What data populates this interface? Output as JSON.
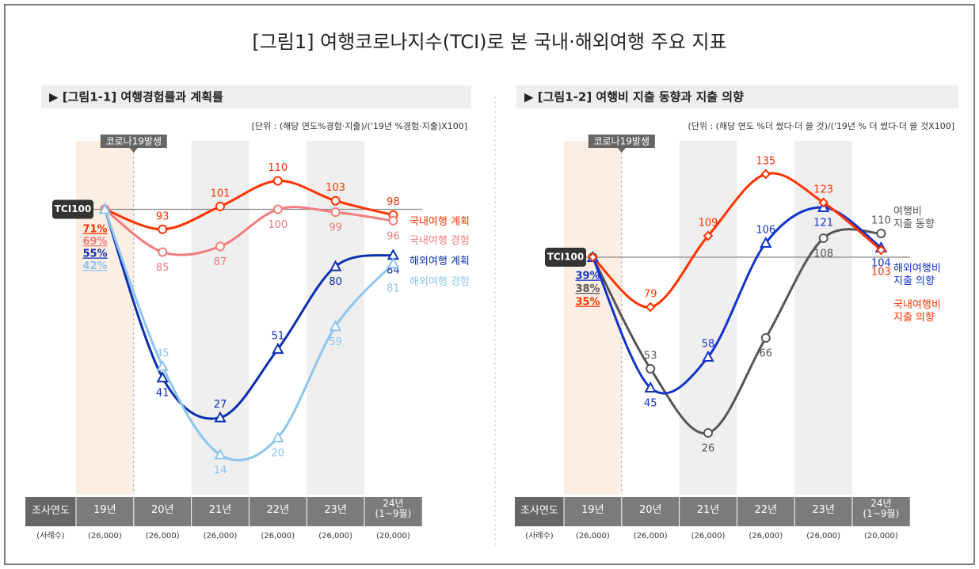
{
  "title": "[그림1] 여행코로나지수(TCI)로 본 국내·해외여행 주요 지표",
  "chart_data": [
    {
      "type": "line",
      "title": "▶ [그림1-1] 여행경험률과 계획률",
      "unit_note": "[단위 : (해당 연도%경험·지출)/('19년 %경험·지출)X100]",
      "categories": [
        "19년",
        "20년",
        "21년",
        "22년",
        "23년",
        "24년\n(1~9월)"
      ],
      "sample_sizes": [
        "(26,000)",
        "(26,000)",
        "(26,000)",
        "(26,000)",
        "(26,000)",
        "(20,000)"
      ],
      "row_labels": [
        "조사연도",
        "(사례수)"
      ],
      "event_label": "코로나19발생",
      "highlight": 0,
      "shaded": [
        2,
        4
      ],
      "reference": {
        "value": 100,
        "label": "TCI100"
      },
      "ylim": [
        0,
        124
      ],
      "series": [
        {
          "name": "국내여행 계획",
          "color": "#ff3300",
          "marker": "circle",
          "values": [
            100,
            93,
            101,
            110,
            103,
            98
          ],
          "base_label": "71%"
        },
        {
          "name": "국내여행 경험",
          "color": "#f47c7c",
          "marker": "circle",
          "values": [
            100,
            85,
            87,
            100,
            99,
            96
          ],
          "base_label": "69%"
        },
        {
          "name": "해외여행 계획",
          "color": "#0a2fae",
          "marker": "triangle",
          "values": [
            100,
            41,
            27,
            51,
            80,
            84
          ],
          "base_label": "55%"
        },
        {
          "name": "해외여행 경험",
          "color": "#8ec5ef",
          "marker": "triangle",
          "values": [
            100,
            45,
            14,
            20,
            59,
            81
          ],
          "base_label": "42%"
        }
      ]
    },
    {
      "type": "line",
      "title": "▶ [그림1-2] 여행비 지출 동향과 지출 의향",
      "unit_note": "(단위 : (해당 연도 %더 썼다·더 쓸 것)/('19년 % 더 썼다·더 쓸 것X100]",
      "categories": [
        "19년",
        "20년",
        "21년",
        "22년",
        "23년",
        "24년\n(1~9월)"
      ],
      "sample_sizes": [
        "(26,000)",
        "(26,000)",
        "(26,000)",
        "(26,000)",
        "(26,000)",
        "(20,000)"
      ],
      "row_labels": [
        "조사연도",
        "(사례수)"
      ],
      "event_label": "코로나19발생",
      "highlight": 0,
      "shaded": [
        2,
        4
      ],
      "reference": {
        "value": 100,
        "label": "TCI100"
      },
      "ylim": [
        0,
        149
      ],
      "series": [
        {
          "name": "여행비\n지출 동향",
          "color": "#555555",
          "marker": "circle",
          "values": [
            100,
            53,
            26,
            66,
            108,
            110
          ],
          "base_label": "38%"
        },
        {
          "name": "해외여행비\n지출 의향",
          "color": "#1133cc",
          "marker": "triangle",
          "values": [
            100,
            45,
            58,
            106,
            121,
            104
          ],
          "base_label": "39%"
        },
        {
          "name": "국내여행비\n지출 의향",
          "color": "#ff3300",
          "marker": "diamond",
          "values": [
            100,
            79,
            109,
            135,
            123,
            103
          ],
          "base_label": "35%"
        }
      ]
    }
  ]
}
